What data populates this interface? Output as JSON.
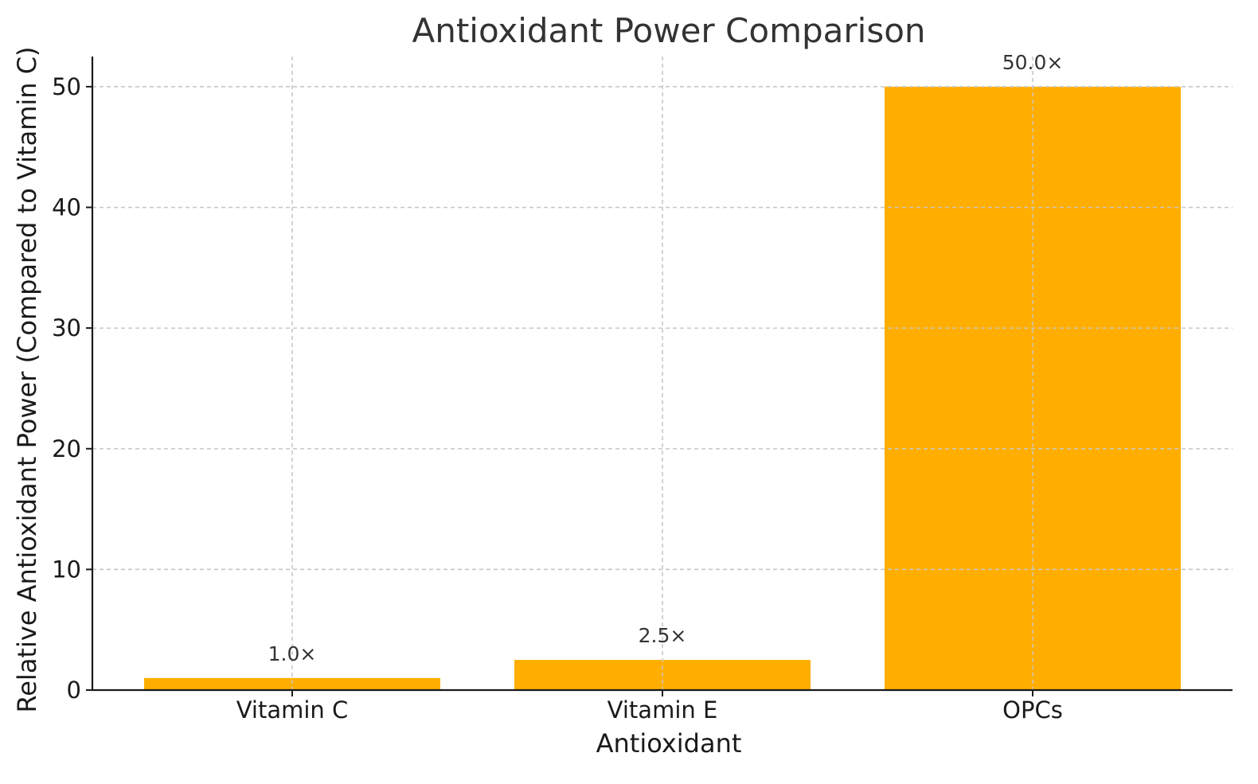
{
  "chart_data": {
    "type": "bar",
    "title": "Antioxidant Power Comparison",
    "xlabel": "Antioxidant",
    "ylabel": "Relative Antioxidant Power (Compared to Vitamin C)",
    "categories": [
      "Vitamin C",
      "Vitamin E",
      "OPCs"
    ],
    "values": [
      1.0,
      2.5,
      50.0
    ],
    "value_labels": [
      "1.0×",
      "2.5×",
      "50.0×"
    ],
    "ylim": [
      0,
      52.5
    ],
    "yticks": [
      0,
      10,
      20,
      30,
      40,
      50
    ],
    "ytick_labels": [
      "0",
      "10",
      "20",
      "30",
      "40",
      "50"
    ],
    "grid": true,
    "grid_style": "dashed",
    "colors": {
      "bar": "#FFAE00",
      "grid": "#c8c8c8",
      "axis": "#1a1a1a"
    }
  }
}
